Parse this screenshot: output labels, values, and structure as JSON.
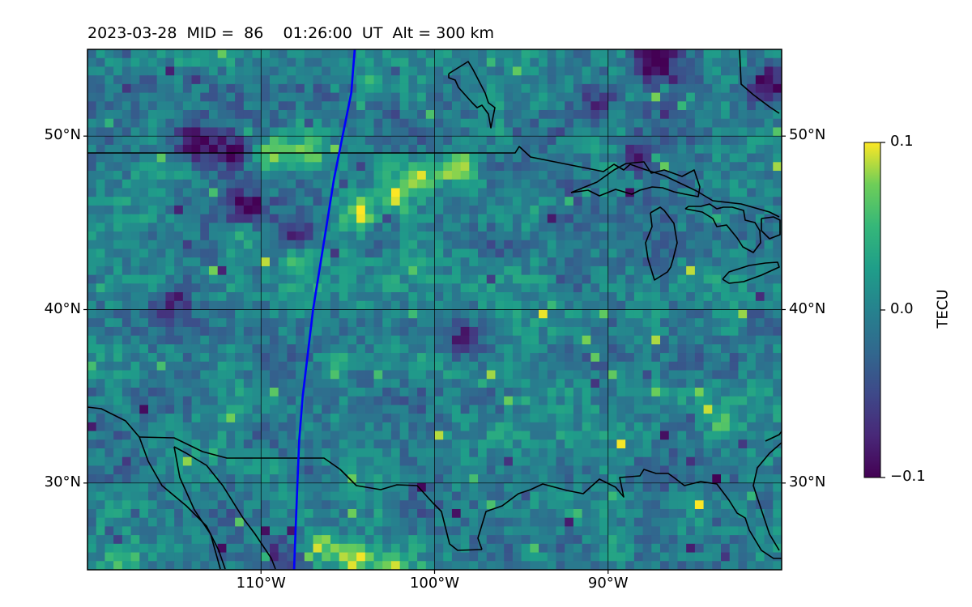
{
  "title": {
    "date": "2023-03-28",
    "mid_label": "MID =",
    "mid_value": "86",
    "time": "01:26:00",
    "time_unit": "UT",
    "alt_label": "Alt =",
    "alt_value": "300 km",
    "full": "2023-03-28  MID =  86    01:26:00  UT  Alt = 300 km"
  },
  "map": {
    "projection": "plate-carree",
    "lon_range": [
      -120,
      -80
    ],
    "lat_range": [
      25,
      55
    ],
    "gridlines": true,
    "lat_ticks": [
      {
        "value": 30,
        "label": "30°N"
      },
      {
        "value": 40,
        "label": "40°N"
      },
      {
        "value": 50,
        "label": "50°N"
      }
    ],
    "lon_ticks": [
      {
        "value": -110,
        "label": "110°W"
      },
      {
        "value": -100,
        "label": "100°W"
      },
      {
        "value": -90,
        "label": "90°W"
      }
    ],
    "features": [
      "coastlines",
      "US-Canada border",
      "US-Mexico border",
      "Great Lakes"
    ],
    "track_color": "#0000ff"
  },
  "chart_data": {
    "type": "heatmap",
    "variable": "TECU",
    "colormap": "viridis",
    "vmin": -0.1,
    "vmax": 0.1,
    "track": {
      "color": "#0000ff",
      "points": [
        [
          -104.6,
          55
        ],
        [
          -104.8,
          52.5
        ],
        [
          -105.3,
          50
        ],
        [
          -105.8,
          47.5
        ],
        [
          -106.2,
          45
        ],
        [
          -106.6,
          42.5
        ],
        [
          -107.0,
          40
        ],
        [
          -107.3,
          37.5
        ],
        [
          -107.6,
          35
        ],
        [
          -107.8,
          32.5
        ],
        [
          -107.9,
          30
        ],
        [
          -108.0,
          27.5
        ],
        [
          -108.1,
          25
        ]
      ]
    },
    "features": {
      "lat_min": 25,
      "lat_max": 55,
      "lon_min": -120,
      "lon_max": -80,
      "hotspots": [
        {
          "lon": -109.5,
          "lat": 49.5,
          "v": 0.09
        },
        {
          "lon": -107.5,
          "lat": 49.2,
          "v": 0.07
        },
        {
          "lon": -101.0,
          "lat": 48.0,
          "v": 0.08
        },
        {
          "lon": -98.7,
          "lat": 48.3,
          "v": 0.1
        },
        {
          "lon": -102.5,
          "lat": 46.7,
          "v": 0.09
        },
        {
          "lon": -104.5,
          "lat": 45.9,
          "v": 0.1
        },
        {
          "lon": -111.5,
          "lat": 44.3,
          "v": 0.07
        },
        {
          "lon": -108.0,
          "lat": 43.0,
          "v": 0.06
        },
        {
          "lon": -106.0,
          "lat": 37.0,
          "v": 0.06
        },
        {
          "lon": -104.8,
          "lat": 26.0,
          "v": 0.1
        },
        {
          "lon": -103.0,
          "lat": 25.5,
          "v": 0.1
        },
        {
          "lon": -106.8,
          "lat": 26.5,
          "v": 0.08
        },
        {
          "lon": -118.0,
          "lat": 26.0,
          "v": 0.05
        },
        {
          "lon": -104.0,
          "lat": 53.2,
          "v": 0.05
        },
        {
          "lon": -89.0,
          "lat": 53.0,
          "v": 0.03
        }
      ],
      "coldspots": [
        {
          "lon": -87.5,
          "lat": 54.6,
          "v": -0.1
        },
        {
          "lon": -81.0,
          "lat": 53.3,
          "v": -0.09
        },
        {
          "lon": -114.0,
          "lat": 49.8,
          "v": -0.1
        },
        {
          "lon": -112.0,
          "lat": 49.3,
          "v": -0.09
        },
        {
          "lon": -88.5,
          "lat": 49.0,
          "v": -0.08
        },
        {
          "lon": -111.3,
          "lat": 46.2,
          "v": -0.09
        },
        {
          "lon": -108.0,
          "lat": 44.5,
          "v": -0.07
        },
        {
          "lon": -98.5,
          "lat": 38.3,
          "v": -0.07
        },
        {
          "lon": -115.5,
          "lat": 40.6,
          "v": -0.06
        },
        {
          "lon": -109.5,
          "lat": 26.0,
          "v": -0.07
        },
        {
          "lon": -91.0,
          "lat": 52.0,
          "v": -0.05
        }
      ]
    }
  },
  "colorbar": {
    "label": "TECU",
    "ticks": [
      {
        "value": 0.1,
        "label": "0.1"
      },
      {
        "value": 0.0,
        "label": "0.0"
      },
      {
        "value": -0.1,
        "label": "−0.1"
      }
    ]
  },
  "colors": {
    "track": "#0000ff",
    "border": "#000000",
    "grid": "#000000"
  }
}
